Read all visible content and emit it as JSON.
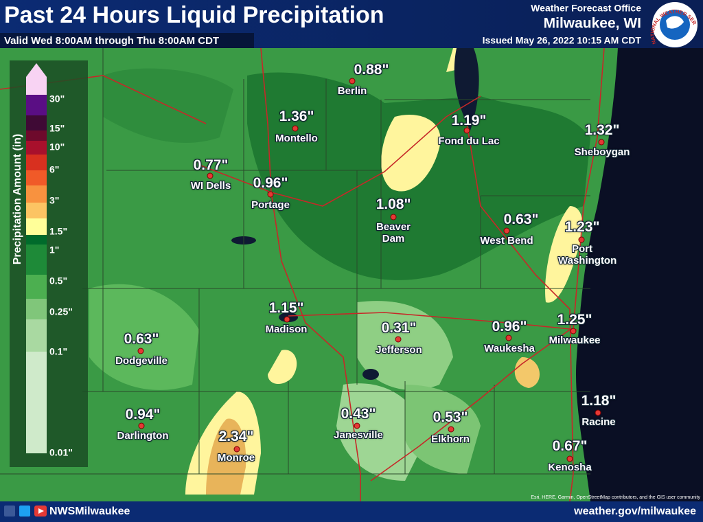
{
  "header": {
    "title": "Past 24 Hours Liquid Precipitation",
    "subtitle": "Valid Wed 8:00AM through Thu 8:00AM CDT",
    "office_line1": "Weather Forecast Office",
    "office_line2": "Milwaukee, WI",
    "issued": "Issued May 26, 2022 10:15 AM CDT",
    "logo_text": "NATIONAL WEATHER SERVICE"
  },
  "legend": {
    "title": "Precipitation Amount (in)",
    "labels": [
      "30\"",
      "15\"",
      "10\"",
      "6\"",
      "3\"",
      "1.5\"",
      "1\"",
      "0.5\"",
      "0.25\"",
      "0.1\"",
      "0.01\""
    ]
  },
  "cities": [
    {
      "name": "Berlin",
      "amount": "0.88\""
    },
    {
      "name": "Montello",
      "amount": "1.36\""
    },
    {
      "name": "Fond du Lac",
      "amount": "1.19\""
    },
    {
      "name": "Sheboygan",
      "amount": "1.32\""
    },
    {
      "name": "WI Dells",
      "amount": "0.77\""
    },
    {
      "name": "Portage",
      "amount": "0.96\""
    },
    {
      "name": "Beaver Dam",
      "amount": "1.08\""
    },
    {
      "name": "West Bend",
      "amount": "0.63\""
    },
    {
      "name": "Port Washington",
      "amount": "1.23\""
    },
    {
      "name": "Madison",
      "amount": "1.15\""
    },
    {
      "name": "Jefferson",
      "amount": "0.31\""
    },
    {
      "name": "Waukesha",
      "amount": "0.96\""
    },
    {
      "name": "Milwaukee",
      "amount": "1.25\""
    },
    {
      "name": "Dodgeville",
      "amount": "0.63\""
    },
    {
      "name": "Darlington",
      "amount": "0.94\""
    },
    {
      "name": "Monroe",
      "amount": "2.34\""
    },
    {
      "name": "Janesville",
      "amount": "0.43\""
    },
    {
      "name": "Elkhorn",
      "amount": "0.53\""
    },
    {
      "name": "Racine",
      "amount": "1.18\""
    },
    {
      "name": "Kenosha",
      "amount": "0.67\""
    }
  ],
  "footer": {
    "handle": "NWSMilwaukee",
    "url": "weather.gov/milwaukee",
    "attribution": "Esri, HERE, Garmin, OpenStreetMap contributors, and the GIS user community"
  }
}
